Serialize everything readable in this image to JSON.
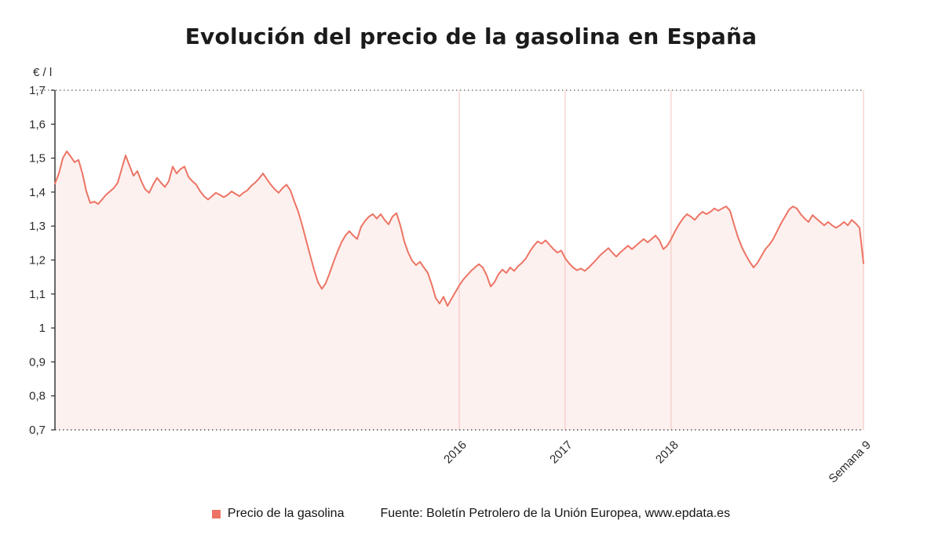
{
  "chart_data": {
    "type": "line",
    "title": "Evolución del precio de la gasolina en España",
    "ylabel": "€ / l",
    "ylim": [
      0.7,
      1.7
    ],
    "y_ticks": [
      1.7,
      1.6,
      1.5,
      1.4,
      1.3,
      1.2,
      1.1,
      1.0,
      0.9,
      0.8,
      0.7
    ],
    "y_tick_labels": [
      "1,7",
      "1,6",
      "1,5",
      "1,4",
      "1,3",
      "1,2",
      "1,1",
      "1",
      "0,9",
      "0,8",
      "0,7"
    ],
    "x_ticks": [
      {
        "label": "2016",
        "pos": 0.5
      },
      {
        "label": "2017",
        "pos": 0.631
      },
      {
        "label": "2018",
        "pos": 0.762
      },
      {
        "label": "Semana 9",
        "pos": 1.0
      }
    ],
    "grid": {
      "vertical_color": "#f3c0ba",
      "horizontal": false
    },
    "legend_position": "bottom",
    "series": [
      {
        "name": "Precio de la gasolina",
        "color": "#ed7465",
        "fill": "#fcf1ef",
        "values": [
          1.425,
          1.455,
          1.5,
          1.52,
          1.505,
          1.488,
          1.495,
          1.455,
          1.402,
          1.368,
          1.372,
          1.365,
          1.378,
          1.392,
          1.402,
          1.412,
          1.428,
          1.468,
          1.508,
          1.478,
          1.448,
          1.462,
          1.432,
          1.408,
          1.398,
          1.422,
          1.442,
          1.428,
          1.415,
          1.432,
          1.475,
          1.455,
          1.468,
          1.475,
          1.445,
          1.432,
          1.422,
          1.402,
          1.388,
          1.378,
          1.388,
          1.398,
          1.392,
          1.385,
          1.392,
          1.402,
          1.395,
          1.388,
          1.398,
          1.405,
          1.418,
          1.428,
          1.44,
          1.455,
          1.438,
          1.422,
          1.408,
          1.398,
          1.412,
          1.422,
          1.405,
          1.372,
          1.342,
          1.302,
          1.258,
          1.215,
          1.172,
          1.135,
          1.115,
          1.132,
          1.162,
          1.195,
          1.225,
          1.252,
          1.272,
          1.285,
          1.272,
          1.262,
          1.298,
          1.315,
          1.328,
          1.335,
          1.322,
          1.335,
          1.318,
          1.305,
          1.328,
          1.338,
          1.302,
          1.255,
          1.222,
          1.198,
          1.185,
          1.195,
          1.178,
          1.162,
          1.128,
          1.088,
          1.072,
          1.092,
          1.065,
          1.085,
          1.105,
          1.125,
          1.142,
          1.155,
          1.168,
          1.178,
          1.188,
          1.178,
          1.155,
          1.122,
          1.135,
          1.158,
          1.172,
          1.162,
          1.178,
          1.168,
          1.182,
          1.192,
          1.205,
          1.225,
          1.242,
          1.255,
          1.248,
          1.258,
          1.245,
          1.232,
          1.222,
          1.228,
          1.205,
          1.19,
          1.178,
          1.17,
          1.175,
          1.168,
          1.178,
          1.19,
          1.202,
          1.215,
          1.225,
          1.235,
          1.222,
          1.21,
          1.222,
          1.232,
          1.242,
          1.232,
          1.242,
          1.252,
          1.262,
          1.252,
          1.262,
          1.272,
          1.258,
          1.232,
          1.242,
          1.262,
          1.285,
          1.305,
          1.322,
          1.335,
          1.328,
          1.318,
          1.332,
          1.342,
          1.335,
          1.342,
          1.352,
          1.345,
          1.352,
          1.358,
          1.345,
          1.305,
          1.268,
          1.238,
          1.215,
          1.195,
          1.178,
          1.192,
          1.212,
          1.232,
          1.245,
          1.262,
          1.285,
          1.308,
          1.328,
          1.348,
          1.358,
          1.352,
          1.335,
          1.322,
          1.312,
          1.332,
          1.322,
          1.312,
          1.302,
          1.312,
          1.302,
          1.295,
          1.302,
          1.312,
          1.302,
          1.318,
          1.308,
          1.295,
          1.19
        ]
      }
    ]
  },
  "legend": {
    "label": "Precio de la gasolina",
    "marker_color": "#ed7465"
  },
  "source": {
    "text": "Fuente: Boletín Petrolero de la Unión Europea, www.epdata.es"
  }
}
